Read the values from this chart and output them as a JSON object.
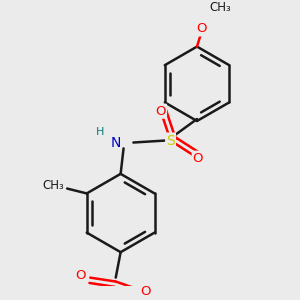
{
  "bg_color": "#ebebeb",
  "bond_color": "#1a1a1a",
  "bond_width": 1.8,
  "dbo": 0.055,
  "figsize": [
    3.0,
    3.0
  ],
  "dpi": 100,
  "atom_colors": {
    "N": "#0000cd",
    "O": "#ff0000",
    "S": "#cccc00",
    "C": "#1a1a1a",
    "H": "#008080"
  },
  "font_size": 9.5
}
